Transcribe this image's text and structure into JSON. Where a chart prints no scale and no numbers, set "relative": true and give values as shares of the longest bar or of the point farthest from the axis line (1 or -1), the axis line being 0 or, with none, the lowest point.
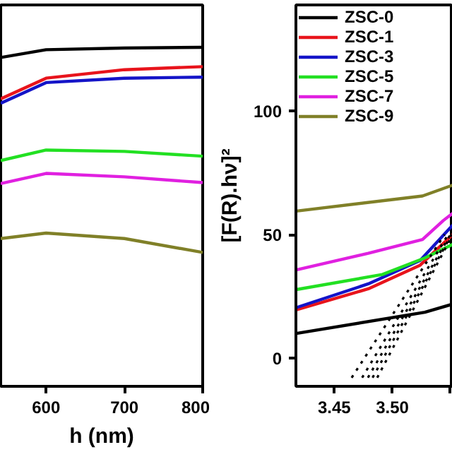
{
  "chart_data": [
    {
      "type": "line",
      "relative": true,
      "xlabel": "h (nm)",
      "xlim": [
        542,
        800
      ],
      "xticks": [
        600,
        700,
        800
      ],
      "tick_labels": "x",
      "legend": false,
      "series": [
        {
          "color": "#000000",
          "x": [
            542,
            600,
            700,
            800
          ],
          "values": [
            0.97,
            0.993,
            0.998,
            1
          ]
        },
        {
          "color": "#e8141c",
          "x": [
            542,
            600,
            700,
            800
          ],
          "values": [
            0.848,
            0.909,
            0.934,
            0.943
          ]
        },
        {
          "color": "#1414c8",
          "x": [
            542,
            600,
            700,
            800
          ],
          "values": [
            0.835,
            0.896,
            0.909,
            0.912
          ]
        },
        {
          "color": "#22e022",
          "x": [
            542,
            600,
            700,
            800
          ],
          "values": [
            0.666,
            0.697,
            0.693,
            0.679
          ]
        },
        {
          "color": "#e020e0",
          "x": [
            542,
            600,
            700,
            800
          ],
          "values": [
            0.598,
            0.628,
            0.618,
            0.601
          ]
        },
        {
          "color": "#808028",
          "x": [
            542,
            600,
            700,
            800
          ],
          "values": [
            0.436,
            0.452,
            0.436,
            0.395
          ]
        }
      ]
    },
    {
      "type": "line",
      "ylabel": "[F(R).hν]²",
      "xlim": [
        3.417,
        3.552
      ],
      "ylim": [
        -11.5,
        143
      ],
      "xticks": [
        3.45,
        {
          "value": 3.5,
          "label": "3.50"
        },
        {
          "value": 3.55,
          "label": null
        }
      ],
      "yticks": [
        0,
        50,
        100
      ],
      "legend": "top left",
      "series": [
        {
          "name": "ZSC-0",
          "color": "#000000",
          "x": [
            3.4174,
            3.528,
            3.552
          ],
          "values": [
            9.9,
            18.5,
            21.8
          ]
        },
        {
          "name": "ZSC-1",
          "color": "#e8141c",
          "x": [
            3.4174,
            3.4793,
            3.524,
            3.552
          ],
          "values": [
            19.5,
            28,
            37.6,
            50
          ]
        },
        {
          "name": "ZSC-3",
          "color": "#1414c8",
          "x": [
            3.4174,
            3.4793,
            3.524,
            3.552
          ],
          "values": [
            20.4,
            30,
            39.5,
            53.8
          ]
        },
        {
          "name": "ZSC-5",
          "color": "#22e022",
          "x": [
            3.4174,
            3.4915,
            3.528,
            3.552
          ],
          "values": [
            27.7,
            33.8,
            40.5,
            46
          ]
        },
        {
          "name": "ZSC-7",
          "color": "#e020e0",
          "x": [
            3.4174,
            3.4793,
            3.526,
            3.544,
            3.552
          ],
          "values": [
            35.7,
            42.4,
            48,
            55.7,
            58.6
          ]
        },
        {
          "name": "ZSC-9",
          "color": "#808028",
          "x": [
            3.4174,
            3.526,
            3.552
          ],
          "values": [
            59.5,
            65.6,
            70
          ]
        },
        {
          "color": "#000000",
          "line_style": "dotted",
          "x": [
            3.465,
            3.545
          ],
          "values": [
            -8,
            50
          ]
        },
        {
          "color": "#000000",
          "line_style": "dotted",
          "x": [
            3.474,
            3.548
          ],
          "values": [
            -8,
            50
          ]
        },
        {
          "color": "#000000",
          "line_style": "dotted",
          "x": [
            3.479,
            3.55
          ],
          "values": [
            -8,
            50
          ]
        },
        {
          "color": "#000000",
          "line_style": "dotted",
          "x": [
            3.483,
            3.551
          ],
          "values": [
            -8,
            50
          ]
        },
        {
          "color": "#000000",
          "line_style": "dotted",
          "x": [
            3.487,
            3.552
          ],
          "values": [
            -8,
            50
          ]
        }
      ]
    }
  ]
}
